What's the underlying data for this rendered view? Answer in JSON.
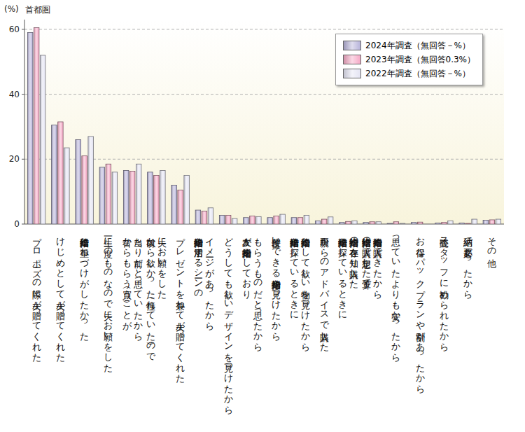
{
  "chart_data": {
    "type": "bar",
    "subtitle": "首都圏",
    "y_label": "(%)",
    "categories": [
      "プロポーズの際に夫が贈ってくれた",
      "けじめとして夫が贈ってくれた",
      "結婚指輪と重ねづけがしたかった",
      "一生に一度のものなので夫にお願いをした",
      "昔からもらう（買う）ことが\n当たり前だと思っていたから",
      "以前から欲しかった（憧れていた）ので\n夫にお願いをした",
      "プレゼントを兼ねて夫が贈ってくれた",
      "婚約指輪を活用するシーンの\nイメージがあったから",
      "どうしても欲しいデザインを見つけたから",
      "友人が婚約指輪をしており\nもらうものだと思ったから",
      "普段使いできる婚約指輪を見つけたから",
      "結婚指輪を探しているときに\n婚約指輪として欲しい物を見つけたから",
      "両親からのアドバイスで購入した",
      "結婚指輪を探しているときに\n婚約指輪の存在を知り購入した",
      "結婚指輪の購入で想定した予算で\n婚約指輪も購入できたから",
      "思っていたよりも安かったから",
      "お得なパックプランや割引があったから",
      "販売スタッフに勧められたから",
      "結納で必要だったから",
      "その他"
    ],
    "series": [
      {
        "name": "2024年調査（無回答－%）",
        "color": "#b7b3da",
        "values": [
          59,
          30.5,
          26,
          17.5,
          16.5,
          16,
          12,
          4.3,
          2.7,
          2,
          2,
          2,
          1,
          0.5,
          0.5,
          0.2,
          0.5,
          0.3,
          0.3,
          1.2
        ]
      },
      {
        "name": "2023年調査（無回答0.3%）",
        "color": "#f5a9c6",
        "values": [
          60.5,
          31.5,
          21,
          18.5,
          16.3,
          15,
          10.5,
          4,
          2.7,
          2.5,
          2.5,
          2,
          1.5,
          0.8,
          0.7,
          0.7,
          0.6,
          0.5,
          0.2,
          1.3
        ]
      },
      {
        "name": "2022年調査（無回答－%）",
        "color": "#e4e4f3",
        "values": [
          52,
          23.5,
          27,
          16,
          18.5,
          16.5,
          15,
          5,
          1.7,
          2.3,
          3,
          2.7,
          2.2,
          1,
          0.7,
          0.2,
          0,
          1,
          1.5,
          1.5
        ]
      }
    ],
    "ylim": [
      0,
      63
    ],
    "yticks": [
      0,
      20,
      40,
      60
    ],
    "grid": true,
    "legend": "top-right"
  }
}
